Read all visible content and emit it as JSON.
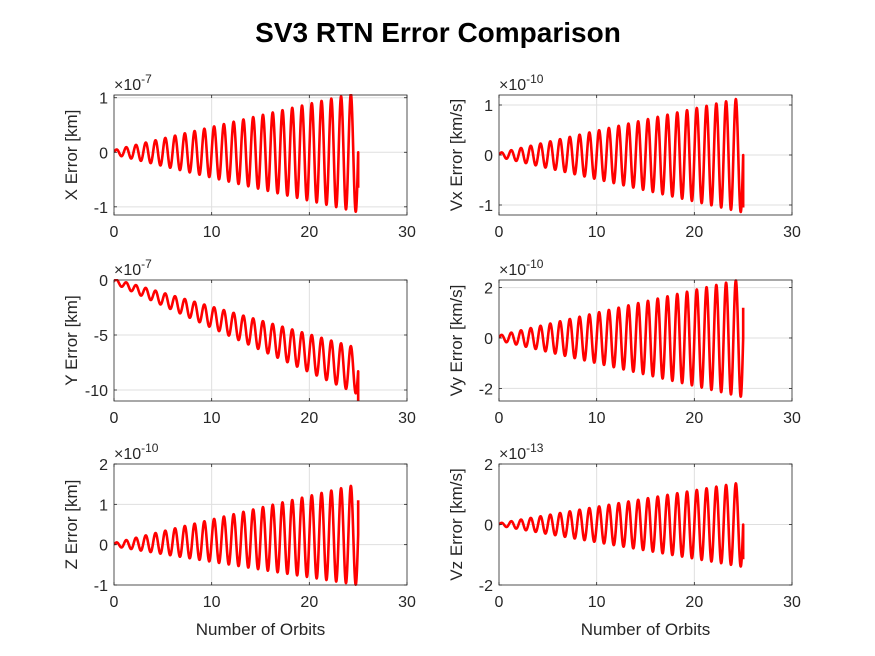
{
  "title": "SV3 RTN Error Comparison",
  "colors": {
    "series": "#ff0000",
    "grid": "#dfdfdf",
    "axes": "#262626"
  },
  "chart_data": [
    {
      "type": "line",
      "ylabel": "X Error [km]",
      "xlabel": "",
      "multiplier": "×10",
      "exponent": "-7",
      "xlim": [
        0,
        30
      ],
      "ylim": [
        -1.15,
        1.05
      ],
      "xticks": [
        "0",
        "10",
        "20",
        "30"
      ],
      "yticks": [
        {
          "value": -1,
          "label": "-1"
        },
        {
          "value": 0,
          "label": "0"
        },
        {
          "value": 1,
          "label": "1"
        }
      ],
      "grid": true,
      "series": [
        {
          "kind": "oscillation",
          "x_end": 25,
          "cycles": 25,
          "trend_start": 0,
          "trend_end": 0,
          "amp_start": 0.04,
          "amp_end": 1.1,
          "end_value": -0.65
        }
      ]
    },
    {
      "type": "line",
      "ylabel": "Vx Error [km/s]",
      "xlabel": "",
      "multiplier": "×10",
      "exponent": "-10",
      "xlim": [
        0,
        30
      ],
      "ylim": [
        -1.2,
        1.2
      ],
      "xticks": [
        "0",
        "10",
        "20",
        "30"
      ],
      "yticks": [
        {
          "value": -1,
          "label": "-1"
        },
        {
          "value": 0,
          "label": "0"
        },
        {
          "value": 1,
          "label": "1"
        }
      ],
      "grid": true,
      "series": [
        {
          "kind": "oscillation",
          "x_end": 25,
          "cycles": 25,
          "trend_start": 0,
          "trend_end": 0,
          "amp_start": 0.04,
          "amp_end": 1.15,
          "end_value": -1.05
        }
      ]
    },
    {
      "type": "line",
      "ylabel": "Y Error [km]",
      "xlabel": "",
      "multiplier": "×10",
      "exponent": "-7",
      "xlim": [
        0,
        30
      ],
      "ylim": [
        -11,
        0
      ],
      "xticks": [
        "0",
        "10",
        "20",
        "30"
      ],
      "yticks": [
        {
          "value": -10,
          "label": "-10"
        },
        {
          "value": -5,
          "label": "-5"
        },
        {
          "value": 0,
          "label": "0"
        }
      ],
      "grid": true,
      "series": [
        {
          "kind": "oscillation",
          "x_end": 25,
          "cycles": 25,
          "trend_start": -0.1,
          "trend_end": -8.3,
          "amp_start": 0.2,
          "amp_end": 2.1,
          "end_value": -11
        }
      ]
    },
    {
      "type": "line",
      "ylabel": "Vy Error [km/s]",
      "xlabel": "",
      "multiplier": "×10",
      "exponent": "-10",
      "xlim": [
        0,
        30
      ],
      "ylim": [
        -2.5,
        2.3
      ],
      "xticks": [
        "0",
        "10",
        "20",
        "30"
      ],
      "yticks": [
        {
          "value": -2,
          "label": "-2"
        },
        {
          "value": 0,
          "label": "0"
        },
        {
          "value": 2,
          "label": "2"
        }
      ],
      "grid": true,
      "series": [
        {
          "kind": "oscillation",
          "x_end": 25,
          "cycles": 25,
          "trend_start": 0,
          "trend_end": 0,
          "amp_start": 0.1,
          "amp_end": 2.35,
          "end_value": 1.2
        }
      ]
    },
    {
      "type": "line",
      "ylabel": "Z Error [km]",
      "xlabel": "Number of Orbits",
      "multiplier": "×10",
      "exponent": "-10",
      "xlim": [
        0,
        30
      ],
      "ylim": [
        -1,
        2
      ],
      "xticks": [
        "0",
        "10",
        "20",
        "30"
      ],
      "yticks": [
        {
          "value": -1,
          "label": "-1"
        },
        {
          "value": 0,
          "label": "0"
        },
        {
          "value": 1,
          "label": "1"
        },
        {
          "value": 2,
          "label": "2"
        }
      ],
      "grid": true,
      "series": [
        {
          "kind": "oscillation",
          "x_end": 25,
          "cycles": 25,
          "trend_start": 0,
          "trend_end": 0.25,
          "amp_start": 0.04,
          "amp_end": 1.25,
          "end_value": 1.1
        }
      ]
    },
    {
      "type": "line",
      "ylabel": "Vz Error [km/s]",
      "xlabel": "Number of Orbits",
      "multiplier": "×10",
      "exponent": "-13",
      "xlim": [
        0,
        30
      ],
      "ylim": [
        -2,
        2
      ],
      "xticks": [
        "0",
        "10",
        "20",
        "30"
      ],
      "yticks": [
        {
          "value": -2,
          "label": "-2"
        },
        {
          "value": 0,
          "label": "0"
        },
        {
          "value": 2,
          "label": "2"
        }
      ],
      "grid": true,
      "series": [
        {
          "kind": "oscillation",
          "x_end": 25,
          "cycles": 25,
          "trend_start": 0,
          "trend_end": 0,
          "amp_start": 0.04,
          "amp_end": 1.4,
          "end_value": -1.15
        }
      ]
    }
  ]
}
